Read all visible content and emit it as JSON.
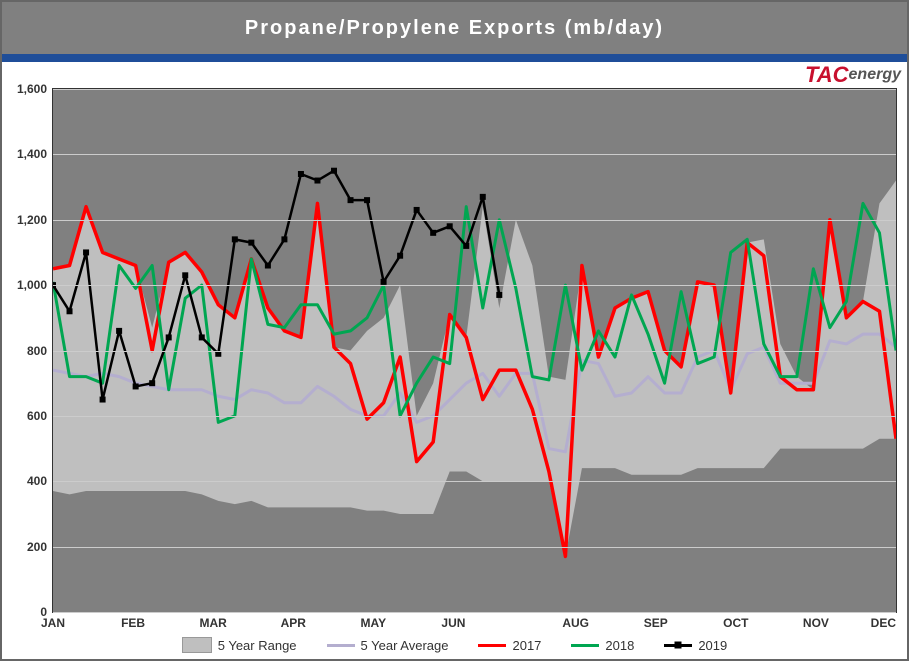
{
  "chart": {
    "type": "line-area",
    "title": "Propane/Propylene Exports (mb/day)",
    "logo": {
      "prefix": "TAC",
      "suffix": "energy",
      "prefix_color": "#c8102e",
      "suffix_color": "#666666"
    },
    "background_color": "#808080",
    "header_color": "#808080",
    "accent_bar_color": "#1f4e99",
    "grid_color": "#cccccc",
    "title_color": "#ffffff",
    "title_fontsize": 20,
    "ylim": [
      0,
      1600
    ],
    "ytick_step": 200,
    "yticks": [
      0,
      200,
      400,
      600,
      800,
      1000,
      1200,
      1400,
      1600
    ],
    "x_months": [
      "JAN",
      "FEB",
      "MAR",
      "APR",
      "MAY",
      "JUN",
      "AUG",
      "SEP",
      "OCT",
      "NOV",
      "DEC"
    ],
    "x_month_positions": [
      0.0,
      0.095,
      0.19,
      0.285,
      0.38,
      0.475,
      0.62,
      0.715,
      0.81,
      0.905,
      0.985
    ],
    "n_points": 52,
    "range_upper": [
      1050,
      1060,
      1240,
      1100,
      1080,
      1060,
      870,
      1070,
      1100,
      1040,
      940,
      900,
      1080,
      930,
      860,
      840,
      1250,
      810,
      800,
      860,
      900,
      1000,
      600,
      700,
      910,
      840,
      1240,
      930,
      1200,
      1060,
      720,
      710,
      1060,
      780,
      930,
      960,
      980,
      800,
      750,
      1010,
      1000,
      670,
      1130,
      1140,
      820,
      720,
      680,
      1200,
      900,
      950,
      1250,
      1320
    ],
    "range_lower": [
      370,
      360,
      370,
      370,
      370,
      370,
      370,
      370,
      370,
      360,
      340,
      330,
      340,
      320,
      320,
      320,
      320,
      320,
      320,
      310,
      310,
      300,
      300,
      300,
      430,
      430,
      400,
      400,
      400,
      400,
      400,
      170,
      440,
      440,
      440,
      420,
      420,
      420,
      420,
      440,
      440,
      440,
      440,
      440,
      500,
      500,
      500,
      500,
      500,
      500,
      530,
      530
    ],
    "range_fill": "#bfbfbf",
    "series": [
      {
        "name": "5 Year Average",
        "color": "#b4aecf",
        "width": 3,
        "markers": false,
        "values": [
          740,
          730,
          720,
          730,
          720,
          700,
          690,
          680,
          680,
          680,
          660,
          650,
          680,
          670,
          640,
          640,
          690,
          660,
          620,
          600,
          600,
          670,
          580,
          600,
          650,
          700,
          730,
          660,
          730,
          730,
          500,
          490,
          770,
          760,
          660,
          670,
          720,
          670,
          670,
          780,
          800,
          680,
          790,
          810,
          700,
          700,
          700,
          830,
          820,
          850,
          850,
          810
        ]
      },
      {
        "name": "2017",
        "color": "#ff0000",
        "width": 3.5,
        "markers": false,
        "values": [
          1050,
          1060,
          1240,
          1100,
          1080,
          1060,
          800,
          1070,
          1100,
          1040,
          940,
          900,
          1080,
          930,
          860,
          840,
          1250,
          810,
          760,
          590,
          640,
          780,
          460,
          520,
          910,
          840,
          650,
          740,
          740,
          620,
          430,
          170,
          1060,
          780,
          930,
          960,
          980,
          800,
          750,
          1010,
          1000,
          670,
          1130,
          1090,
          720,
          680,
          680,
          1200,
          900,
          950,
          920,
          530
        ]
      },
      {
        "name": "2018",
        "color": "#00a651",
        "width": 3,
        "markers": false,
        "values": [
          1010,
          720,
          720,
          700,
          1060,
          990,
          1060,
          680,
          960,
          1000,
          580,
          600,
          1080,
          880,
          870,
          940,
          940,
          850,
          860,
          900,
          1000,
          600,
          700,
          780,
          760,
          1240,
          930,
          1200,
          990,
          720,
          710,
          1000,
          740,
          860,
          780,
          970,
          850,
          700,
          980,
          760,
          780,
          1100,
          1140,
          820,
          720,
          720,
          1050,
          870,
          950,
          1250,
          1160,
          800
        ]
      },
      {
        "name": "2019",
        "color": "#000000",
        "width": 2.5,
        "markers": true,
        "marker": "square",
        "marker_size": 6,
        "values": [
          1000,
          920,
          1100,
          650,
          860,
          690,
          700,
          840,
          1030,
          840,
          790,
          1140,
          1130,
          1060,
          1140,
          1340,
          1320,
          1350,
          1260,
          1260,
          1010,
          1090,
          1230,
          1160,
          1180,
          1120,
          1270,
          970
        ]
      }
    ],
    "legend": [
      {
        "label": "5 Year Range",
        "kind": "range",
        "fill": "#bfbfbf"
      },
      {
        "label": "5 Year Average",
        "kind": "line",
        "color": "#b4aecf"
      },
      {
        "label": "2017",
        "kind": "line",
        "color": "#ff0000"
      },
      {
        "label": "2018",
        "kind": "line",
        "color": "#00a651"
      },
      {
        "label": "2019",
        "kind": "line-marker",
        "color": "#000000"
      }
    ]
  }
}
